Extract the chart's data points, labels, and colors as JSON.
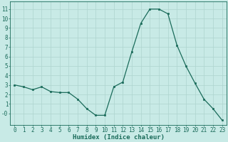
{
  "x": [
    0,
    1,
    2,
    3,
    4,
    5,
    6,
    7,
    8,
    9,
    10,
    11,
    12,
    13,
    14,
    15,
    16,
    17,
    18,
    19,
    20,
    21,
    22,
    23
  ],
  "y": [
    3.0,
    2.8,
    2.5,
    2.8,
    2.3,
    2.2,
    2.2,
    1.5,
    0.5,
    -0.2,
    -0.2,
    2.8,
    3.3,
    6.5,
    9.5,
    11.0,
    11.0,
    10.5,
    7.2,
    5.0,
    3.2,
    1.5,
    0.5,
    -0.7
  ],
  "line_color": "#1a6b5a",
  "marker": "s",
  "marker_size": 2.0,
  "bg_color": "#c8eae6",
  "grid_color": "#aed4cf",
  "xlabel": "Humidex (Indice chaleur)",
  "xlim": [
    -0.5,
    23.5
  ],
  "ylim": [
    -1.2,
    11.8
  ],
  "xticks": [
    0,
    1,
    2,
    3,
    4,
    5,
    6,
    7,
    8,
    9,
    10,
    11,
    12,
    13,
    14,
    15,
    16,
    17,
    18,
    19,
    20,
    21,
    22,
    23
  ],
  "yticks": [
    0,
    1,
    2,
    3,
    4,
    5,
    6,
    7,
    8,
    9,
    10,
    11
  ],
  "ytick_labels": [
    "-0",
    "1",
    "2",
    "3",
    "4",
    "5",
    "6",
    "7",
    "8",
    "9",
    "10",
    "11"
  ],
  "xlabel_fontsize": 6.5,
  "tick_fontsize": 5.5,
  "axis_color": "#1a6b5a",
  "linewidth": 0.9
}
